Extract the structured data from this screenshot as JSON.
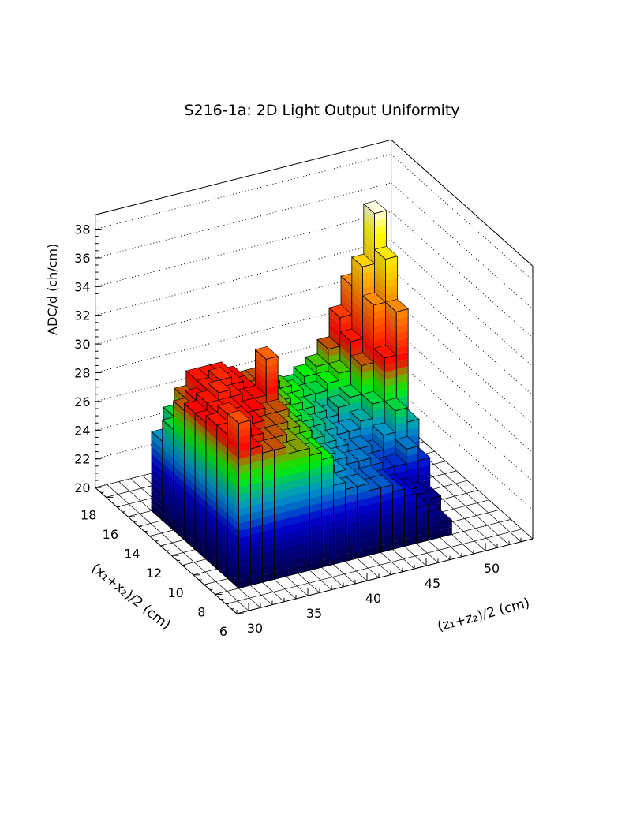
{
  "chart_data": {
    "type": "lego3d",
    "title": "S216-1a: 2D Light Output Uniformity",
    "xlabel": "(z₁+z₂)/2 (cm)",
    "ylabel": "(x₁+x₂)/2 (cm)",
    "zlabel": "ADC/d (ch/cm)",
    "xlim": [
      29,
      54
    ],
    "ylim": [
      6,
      19
    ],
    "zlim": [
      20,
      39
    ],
    "x_ticks": [
      30,
      35,
      40,
      45,
      50
    ],
    "y_ticks": [
      6,
      8,
      10,
      12,
      14,
      16,
      18
    ],
    "z_ticks": [
      20,
      22,
      24,
      26,
      28,
      30,
      32,
      34,
      36,
      38
    ],
    "x_bins_start": [
      31,
      32,
      33,
      34,
      35,
      36,
      37,
      38,
      39,
      40,
      41,
      42,
      43,
      44,
      45,
      46,
      47,
      48
    ],
    "y_bins_start": [
      8,
      9,
      10,
      11,
      12,
      13,
      14,
      15
    ],
    "values": [
      [
        31.5,
        29.5,
        29,
        29,
        28.5,
        28.5,
        28,
        27.5,
        25.5,
        25,
        25,
        24.5,
        24.5,
        24,
        23.5,
        22.5,
        22,
        21
      ],
      [
        30,
        30,
        29.5,
        29,
        29,
        28.5,
        28,
        27.5,
        26,
        25.5,
        25,
        24.5,
        24.5,
        24,
        23.5,
        23,
        22.5,
        22
      ],
      [
        30,
        30.5,
        30,
        29.5,
        29,
        29,
        28.5,
        28,
        26.5,
        26,
        25.5,
        25,
        25,
        24.5,
        24,
        24,
        25,
        24
      ],
      [
        29.5,
        30,
        30,
        29.5,
        29.5,
        29,
        29,
        28,
        27,
        26.5,
        26,
        25.5,
        25,
        25,
        24.5,
        25.5,
        27,
        26
      ],
      [
        29.5,
        30,
        30.5,
        30,
        29.5,
        29.5,
        32,
        28.5,
        27.5,
        27,
        26.5,
        26,
        25.5,
        25.5,
        26,
        27,
        30,
        33
      ],
      [
        29,
        29.5,
        30,
        30.5,
        30,
        29.5,
        29,
        28.5,
        28,
        27.5,
        27,
        26.5,
        26,
        26.5,
        27,
        29,
        33,
        36
      ],
      [
        27,
        29,
        30,
        30,
        30,
        29.5,
        29,
        29,
        28.5,
        28,
        27.5,
        27,
        27,
        27.5,
        28,
        30,
        35,
        38.5
      ],
      [
        25.5,
        27,
        28,
        29,
        29,
        29,
        28.5,
        28,
        28,
        27.5,
        27,
        27,
        27.5,
        28,
        29,
        31,
        33,
        30
      ]
    ],
    "grid": true
  }
}
